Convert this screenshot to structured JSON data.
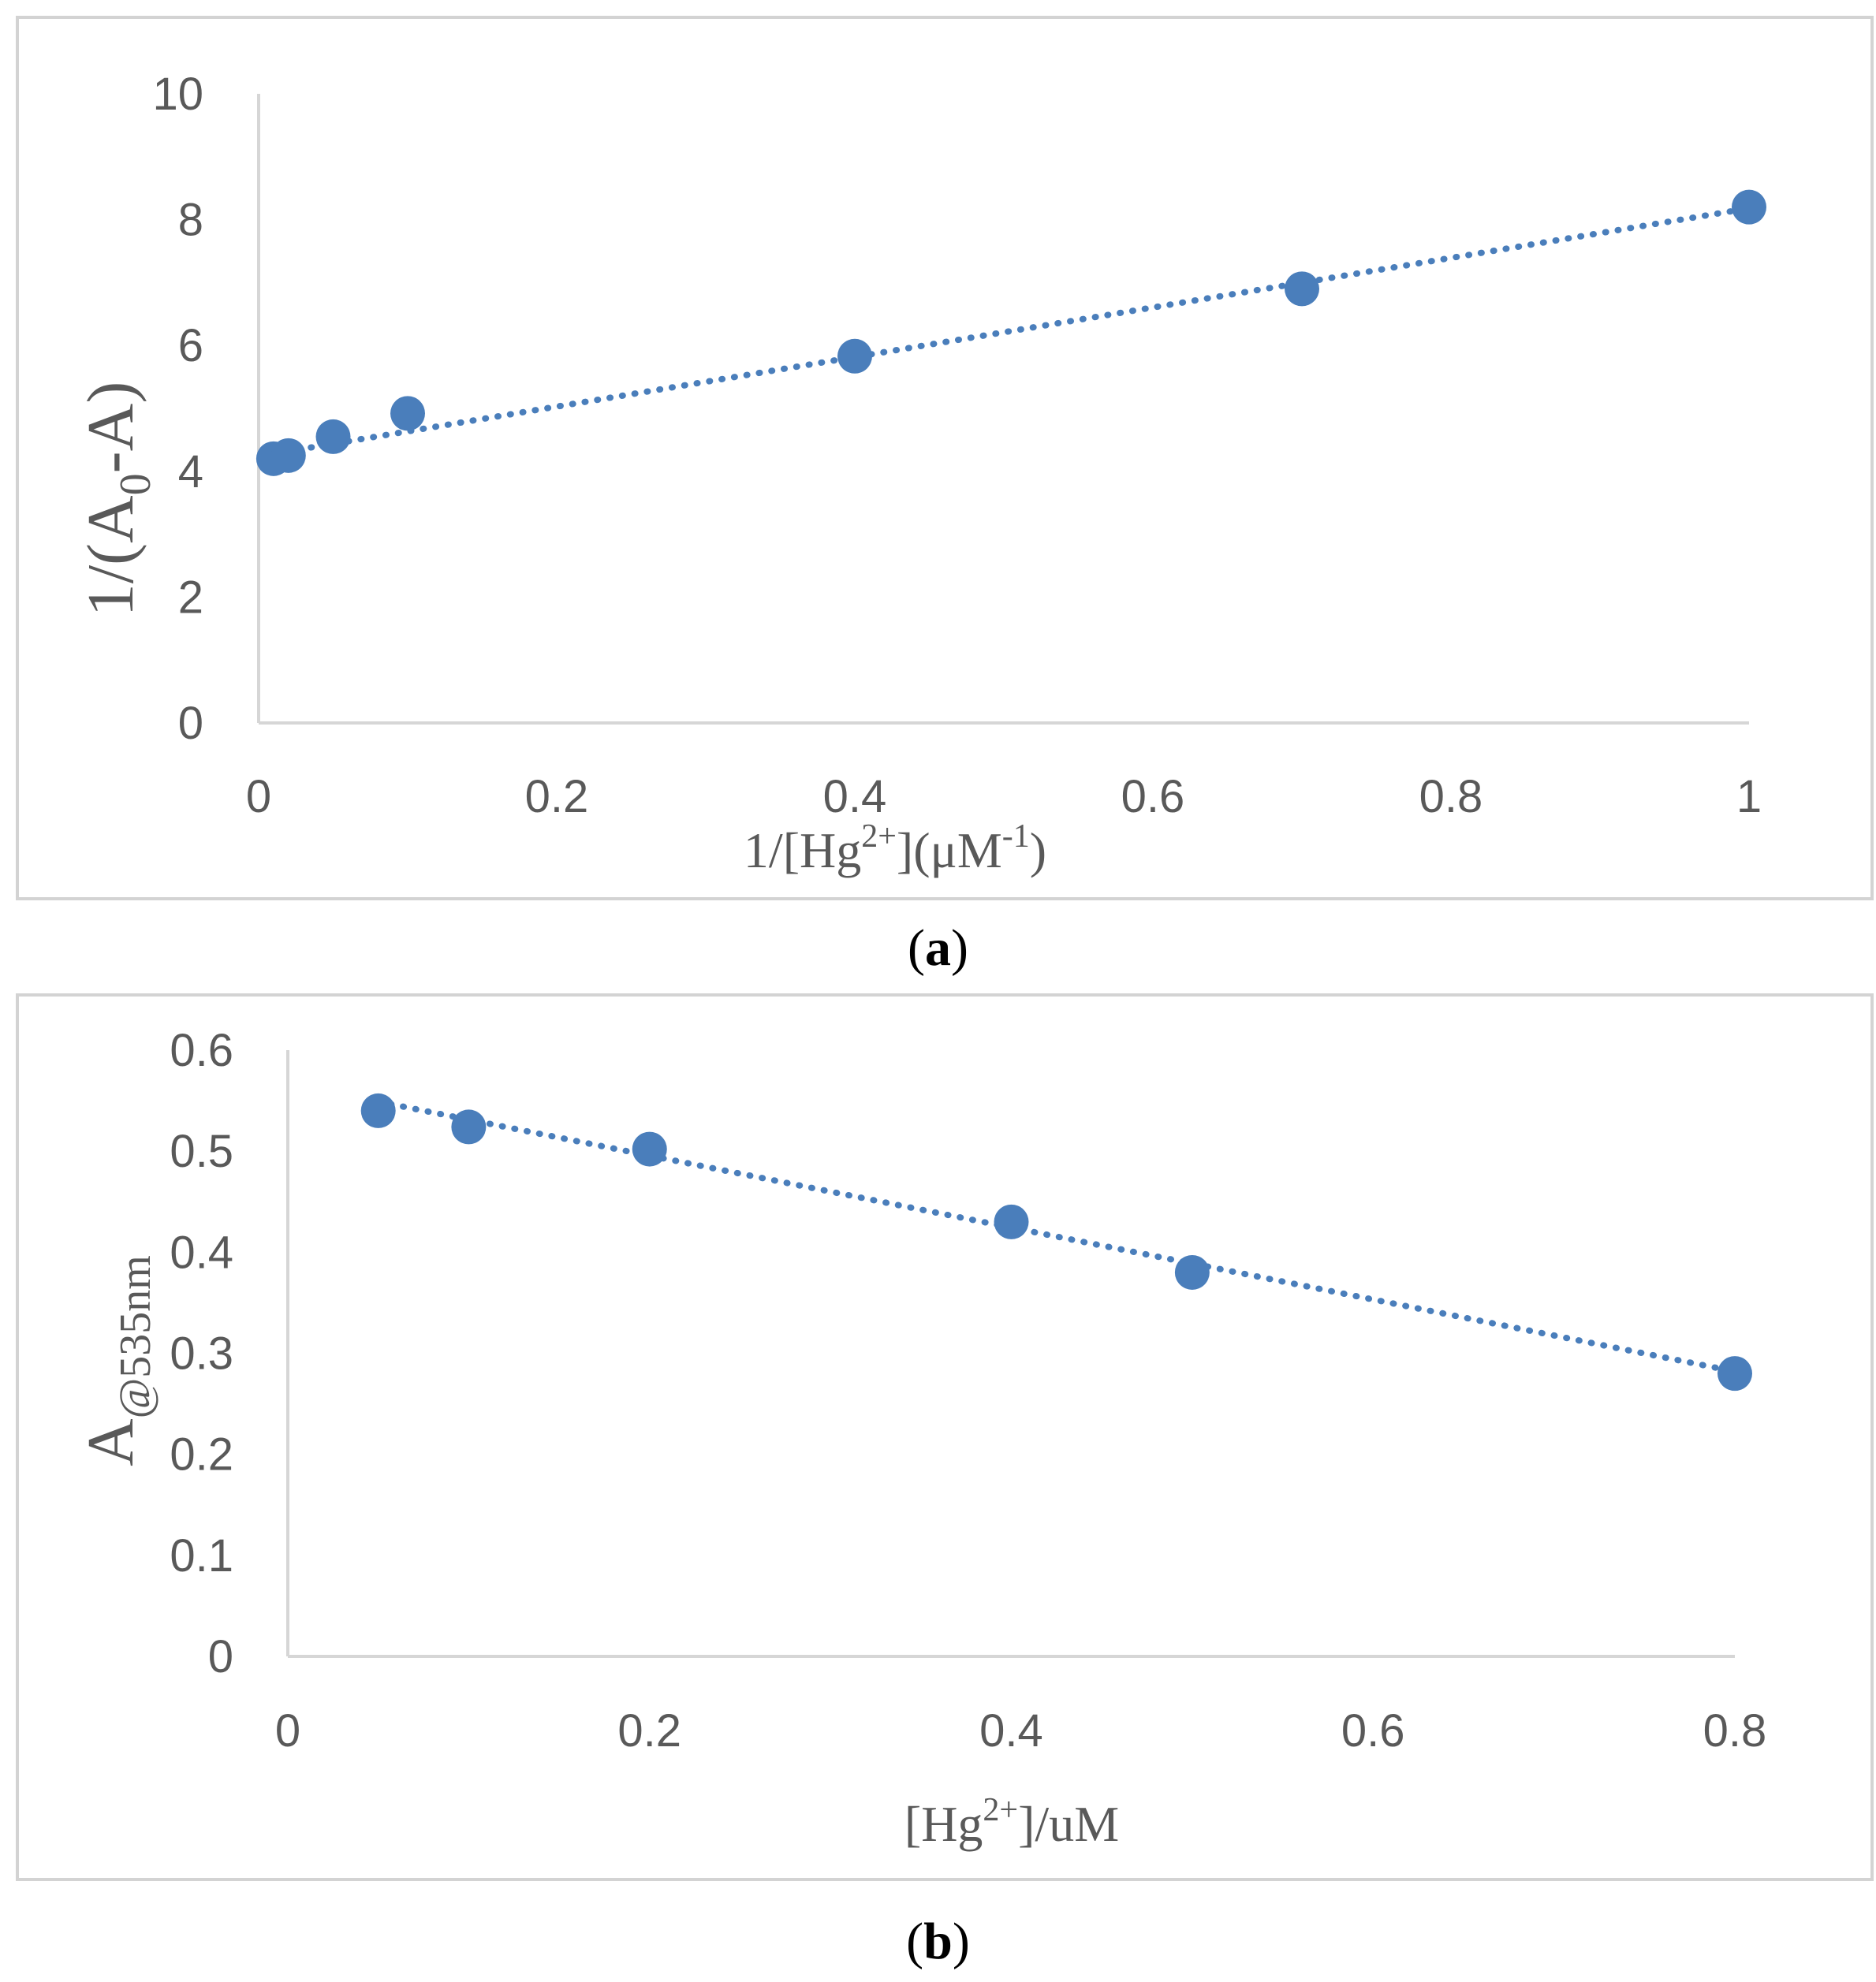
{
  "colors": {
    "series": "#4a7ebb",
    "axis": "#d6d6d6",
    "frame": "#d3d3d3",
    "text": "#595959"
  },
  "chart_data": [
    {
      "type": "scatter",
      "panel_label": "a",
      "xlabel": {
        "pre": "1/[Hg",
        "sup": "2+",
        "mid": "](μM",
        "sup2": "-1",
        "post": ")"
      },
      "ylabel": {
        "pre": "1/(A",
        "sub": "0",
        "post": "-A)"
      },
      "xlim": [
        0,
        1
      ],
      "ylim": [
        0,
        10
      ],
      "x_ticks": [
        "0",
        "0.2",
        "0.4",
        "0.6",
        "0.8",
        "1"
      ],
      "y_ticks": [
        "0",
        "2",
        "4",
        "6",
        "8",
        "10"
      ],
      "x_tick_values": [
        0,
        0.2,
        0.4,
        0.6,
        0.8,
        1
      ],
      "y_tick_values": [
        0,
        2,
        4,
        6,
        8,
        10
      ],
      "x": [
        0.01,
        0.02,
        0.05,
        0.1,
        0.4,
        0.7,
        1.0
      ],
      "y": [
        4.2,
        4.25,
        4.55,
        4.92,
        5.83,
        6.9,
        8.2
      ],
      "trendline": {
        "type": "linear",
        "x": [
          0.01,
          1.0
        ],
        "y": [
          4.28,
          8.18
        ]
      }
    },
    {
      "type": "scatter",
      "panel_label": "b",
      "xlabel": {
        "pre": "[Hg",
        "sup": "2+",
        "post": "]/uM"
      },
      "ylabel": {
        "pre": "A",
        "sub": "@535nm"
      },
      "xlim": [
        0,
        0.8
      ],
      "ylim": [
        0,
        0.6
      ],
      "x_ticks": [
        "0",
        "0.2",
        "0.4",
        "0.6",
        "0.8"
      ],
      "y_ticks": [
        "0",
        "0.1",
        "0.2",
        "0.3",
        "0.4",
        "0.5",
        "0.6"
      ],
      "x_tick_values": [
        0,
        0.2,
        0.4,
        0.6,
        0.8
      ],
      "y_tick_values": [
        0,
        0.1,
        0.2,
        0.3,
        0.4,
        0.5,
        0.6
      ],
      "x": [
        0.05,
        0.1,
        0.2,
        0.4,
        0.5,
        0.8
      ],
      "y": [
        0.54,
        0.524,
        0.502,
        0.43,
        0.38,
        0.28
      ],
      "trendline": {
        "type": "linear",
        "x": [
          0.05,
          0.8
        ],
        "y": [
          0.549,
          0.282
        ]
      }
    }
  ]
}
